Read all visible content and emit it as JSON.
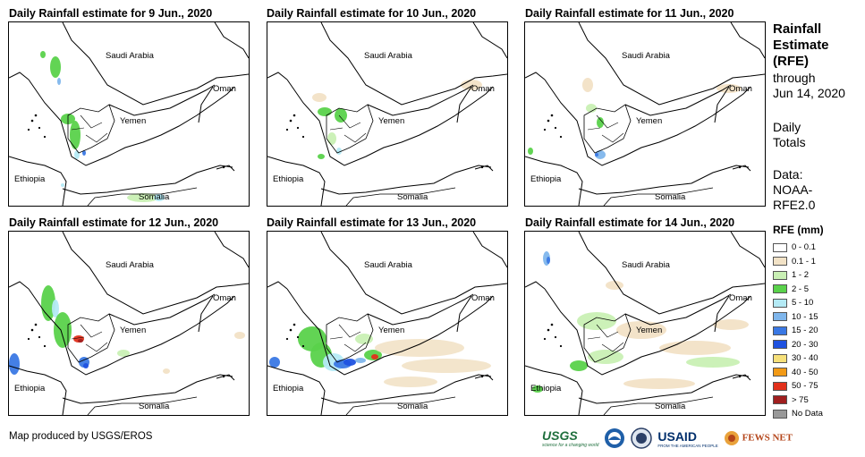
{
  "panels": [
    {
      "title": "Daily Rainfall estimate for 9 Jun., 2020"
    },
    {
      "title": "Daily Rainfall estimate for 10 Jun., 2020"
    },
    {
      "title": "Daily Rainfall estimate for 11 Jun., 2020"
    },
    {
      "title": "Daily Rainfall estimate for 12 Jun., 2020"
    },
    {
      "title": "Daily Rainfall estimate for 13 Jun., 2020"
    },
    {
      "title": "Daily Rainfall estimate for 14 Jun., 2020"
    }
  ],
  "map_labels": {
    "saudi": "Saudi Arabia",
    "oman": "Oman",
    "yemen": "Yemen",
    "ethiopia": "Ethiopia",
    "somalia": "Somalia"
  },
  "sidebar": {
    "title_line1": "Rainfall",
    "title_line2": "Estimate",
    "title_line3": "(RFE)",
    "through": "through",
    "date": "Jun 14, 2020",
    "totals1": "Daily",
    "totals2": "Totals",
    "data1": "Data:",
    "data2": "NOAA-",
    "data3": "RFE2.0"
  },
  "legend": {
    "title": "RFE (mm)",
    "items": [
      {
        "label": "0 - 0.1",
        "color": "#ffffff"
      },
      {
        "label": "0.1 - 1",
        "color": "#f2e2c6"
      },
      {
        "label": "1 - 2",
        "color": "#c9f0b4"
      },
      {
        "label": "2 - 5",
        "color": "#5ad24b"
      },
      {
        "label": "5 - 10",
        "color": "#b4eaf5"
      },
      {
        "label": "10 - 15",
        "color": "#7fb6ec"
      },
      {
        "label": "15 - 20",
        "color": "#3a78e4"
      },
      {
        "label": "20 - 30",
        "color": "#1f52e0"
      },
      {
        "label": "30 - 40",
        "color": "#f6e07a"
      },
      {
        "label": "40 - 50",
        "color": "#f29a16"
      },
      {
        "label": "50 - 75",
        "color": "#e2301b"
      },
      {
        "label": "> 75",
        "color": "#a01f1f"
      },
      {
        "label": "No Data",
        "color": "#999999"
      }
    ]
  },
  "footer": {
    "credit": "Map produced by USGS/EROS",
    "usgs": "USGS",
    "usgs_tag": "science for a changing world",
    "usaid": "USAID",
    "usaid_tag": "FROM THE AMERICAN PEOPLE",
    "fews": "FEWS NET"
  }
}
